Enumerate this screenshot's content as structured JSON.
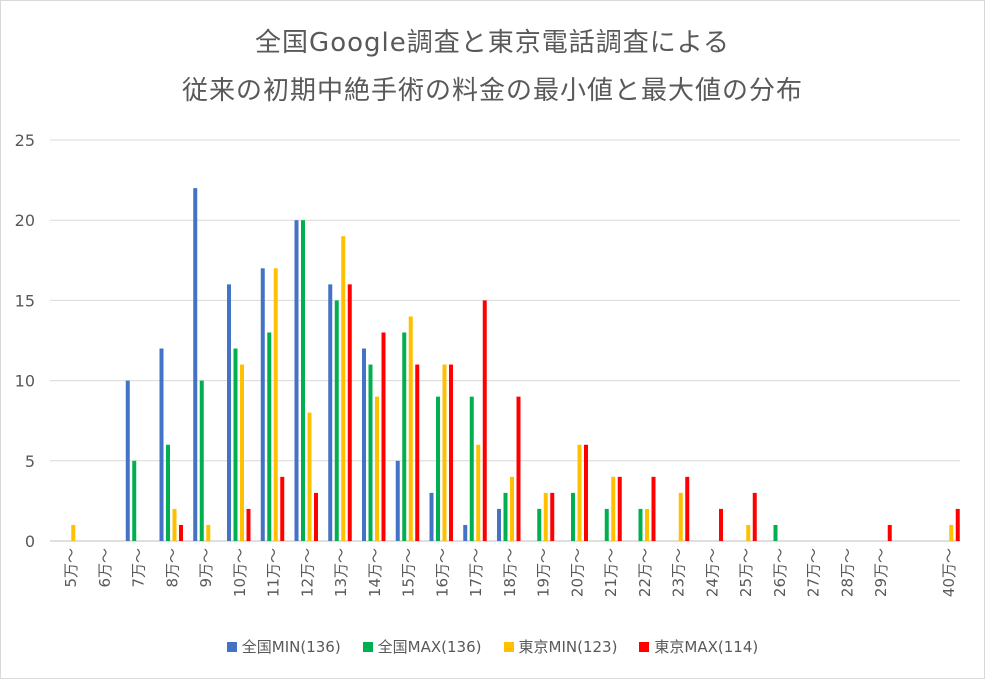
{
  "chart_data": {
    "type": "bar",
    "title_line1": "全国Google調査と東京電話調査による",
    "title_line2": "従来の初期中絶手術の料金の最小値と最大値の分布",
    "ylim": [
      0,
      25
    ],
    "yticks": [
      0,
      5,
      10,
      15,
      20,
      25
    ],
    "grid": true,
    "legend_position": "bottom",
    "categories": [
      "5万～",
      "6万～",
      "7万～",
      "8万～",
      "9万～",
      "10万～",
      "11万～",
      "12万～",
      "13万～",
      "14万～",
      "15万～",
      "16万～",
      "17万～",
      "18万～",
      "19万～",
      "20万～",
      "21万～",
      "22万～",
      "23万～",
      "24万～",
      "25万～",
      "26万～",
      "27万～",
      "28万～",
      "29万～",
      "40万～"
    ],
    "series": [
      {
        "name": "全国MIN(136)",
        "color": "#4472c4",
        "values": [
          0,
          0,
          10,
          12,
          22,
          16,
          17,
          20,
          16,
          12,
          5,
          3,
          1,
          2,
          0,
          0,
          0,
          0,
          0,
          0,
          0,
          0,
          0,
          0,
          0,
          0
        ]
      },
      {
        "name": "全国MAX(136)",
        "color": "#00b050",
        "values": [
          0,
          0,
          5,
          6,
          10,
          12,
          13,
          20,
          15,
          11,
          13,
          9,
          9,
          3,
          2,
          3,
          2,
          2,
          0,
          0,
          0,
          1,
          0,
          0,
          0,
          0
        ]
      },
      {
        "name": "東京MIN(123)",
        "color": "#ffc000",
        "values": [
          1,
          0,
          0,
          2,
          1,
          11,
          17,
          8,
          19,
          9,
          14,
          11,
          6,
          4,
          3,
          6,
          4,
          2,
          3,
          0,
          1,
          0,
          0,
          0,
          0,
          1
        ]
      },
      {
        "name": "東京MAX(114)",
        "color": "#ff0000",
        "values": [
          0,
          0,
          0,
          1,
          0,
          2,
          4,
          3,
          16,
          13,
          11,
          11,
          15,
          9,
          3,
          6,
          4,
          4,
          4,
          2,
          3,
          0,
          0,
          0,
          1,
          2
        ]
      }
    ]
  }
}
